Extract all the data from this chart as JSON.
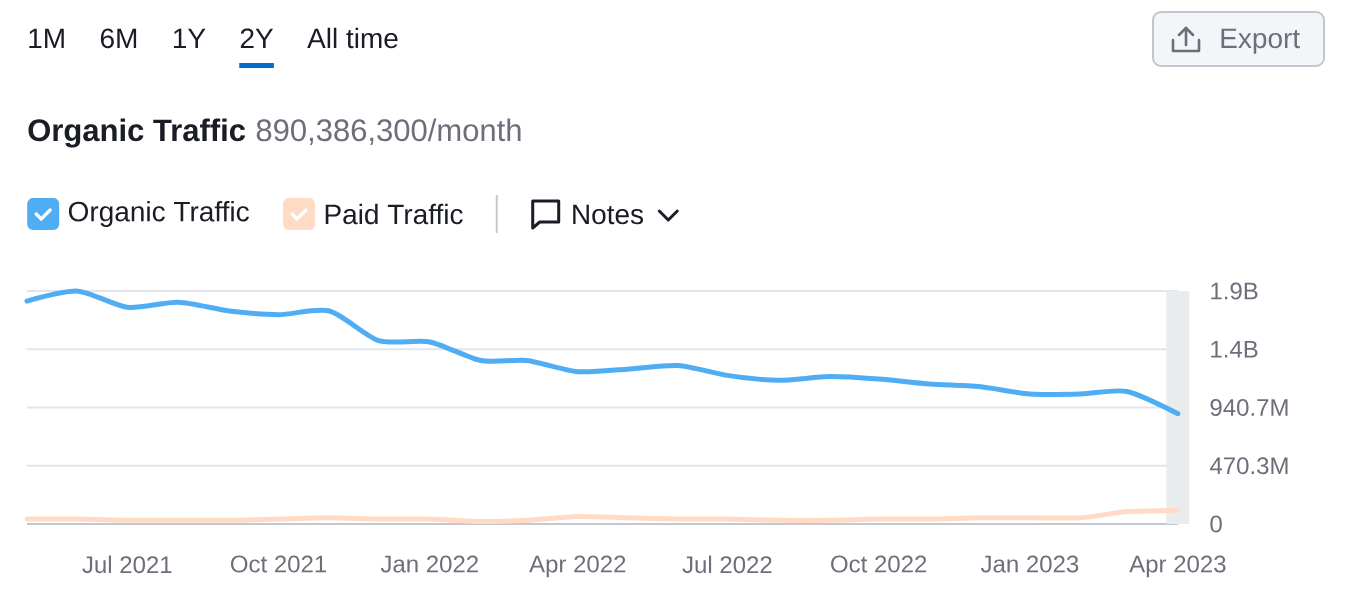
{
  "chart_data": {
    "type": "line",
    "title": "Organic Traffic",
    "subtitle": "890,386,300/month",
    "annotations": [
      "1M",
      "6M",
      "1Y",
      "2Y",
      "All time",
      "Export",
      "Notes"
    ],
    "x": [
      "2021-05",
      "2021-06",
      "2021-07",
      "2021-08",
      "2021-09",
      "2021-10",
      "2021-11",
      "2021-12",
      "2022-01",
      "2022-02",
      "2022-03",
      "2022-04",
      "2022-05",
      "2022-06",
      "2022-07",
      "2022-08",
      "2022-09",
      "2022-10",
      "2022-11",
      "2022-12",
      "2023-01",
      "2023-02",
      "2023-03",
      "2023-04"
    ],
    "series": [
      {
        "name": "Organic Traffic",
        "color": "#4fadf3",
        "values": [
          1800000000,
          1880000000,
          1750000000,
          1790000000,
          1720000000,
          1690000000,
          1720000000,
          1480000000,
          1470000000,
          1320000000,
          1320000000,
          1230000000,
          1250000000,
          1280000000,
          1200000000,
          1160000000,
          1190000000,
          1170000000,
          1130000000,
          1110000000,
          1050000000,
          1050000000,
          1070000000,
          890386300
        ]
      },
      {
        "name": "Paid Traffic",
        "color": "#ffdac4",
        "values": [
          40000000,
          40000000,
          30000000,
          30000000,
          30000000,
          40000000,
          50000000,
          40000000,
          40000000,
          20000000,
          30000000,
          60000000,
          50000000,
          40000000,
          40000000,
          30000000,
          30000000,
          40000000,
          40000000,
          50000000,
          50000000,
          50000000,
          100000000,
          110000000
        ]
      }
    ],
    "xlim": [
      "2021-05",
      "2023-04"
    ],
    "xticks": [
      {
        "value": "2021-07",
        "label": "Jul 2021"
      },
      {
        "value": "2021-10",
        "label": "Oct 2021"
      },
      {
        "value": "2022-01",
        "label": "Jan 2022"
      },
      {
        "value": "2022-04",
        "label": "Apr 2022"
      },
      {
        "value": "2022-07",
        "label": "Jul 2022"
      },
      {
        "value": "2022-10",
        "label": "Oct 2022"
      },
      {
        "value": "2023-01",
        "label": "Jan 2023"
      },
      {
        "value": "2023-04",
        "label": "Apr 2023"
      }
    ],
    "ylim": [
      0,
      1881300000
    ],
    "yticks": [
      0,
      {
        "value": 470300000,
        "label": "470.3M"
      },
      {
        "value": 940700000,
        "label": "940.7M"
      },
      {
        "value": 1411000000,
        "label": "1.4B"
      },
      {
        "value": 1881300000,
        "label": "1.9B"
      }
    ],
    "bands": [
      {
        "axis": "x",
        "from": "2023-03-25",
        "to": "2023-04-08",
        "color": "#e8eced"
      }
    ],
    "grid": "y",
    "legend": "top left"
  }
}
